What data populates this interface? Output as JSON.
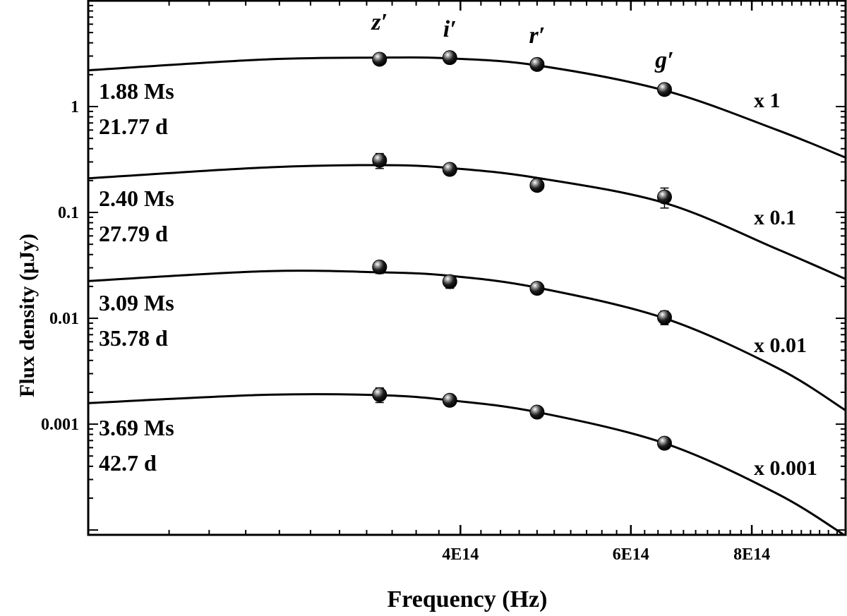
{
  "chart_data": {
    "type": "scatter",
    "title": "",
    "xlabel": "Frequency (Hz)",
    "ylabel": "Flux density (μJy)",
    "xscale": "log",
    "yscale": "log",
    "xlim": [
      165000000000000.0,
      1000000000000000.0
    ],
    "ylim": [
      9e-05,
      10
    ],
    "x_ticks": [
      {
        "value": 400000000000000.0,
        "label": "4E14"
      },
      {
        "value": 600000000000000.0,
        "label": "6E14"
      },
      {
        "value": 800000000000000.0,
        "label": "8E14"
      }
    ],
    "y_ticks": [
      {
        "value": 0.001,
        "label": "0.001"
      },
      {
        "value": 0.01,
        "label": "0.01"
      },
      {
        "value": 0.1,
        "label": "0.1"
      },
      {
        "value": 1,
        "label": "1"
      }
    ],
    "filters": [
      {
        "name": "z′",
        "freq": 330000000000000.0
      },
      {
        "name": "i′",
        "freq": 390000000000000.0
      },
      {
        "name": "r′",
        "freq": 480000000000000.0
      },
      {
        "name": "g′",
        "freq": 650000000000000.0
      }
    ],
    "series": [
      {
        "name": "1.88 Ms",
        "time_s": "1.88 Ms",
        "time_d": "21.77 d",
        "scale": "x 1",
        "x": [
          330000000000000.0,
          390000000000000.0,
          480000000000000.0,
          650000000000000.0
        ],
        "y": [
          2.8,
          2.9,
          2.5,
          1.45
        ],
        "err": [
          0.3,
          0.2,
          0.2,
          0.12
        ]
      },
      {
        "name": "2.40 Ms",
        "time_s": "2.40 Ms",
        "time_d": "27.79 d",
        "scale": "x 0.1",
        "x": [
          330000000000000.0,
          390000000000000.0,
          480000000000000.0,
          650000000000000.0
        ],
        "y": [
          0.31,
          0.255,
          0.18,
          0.14
        ],
        "err": [
          0.05,
          0.03,
          0.015,
          0.03
        ]
      },
      {
        "name": "3.09 Ms",
        "time_s": "3.09 Ms",
        "time_d": "35.78 d",
        "scale": "x 0.01",
        "x": [
          330000000000000.0,
          390000000000000.0,
          480000000000000.0,
          650000000000000.0
        ],
        "y": [
          0.0305,
          0.0222,
          0.0192,
          0.0102
        ],
        "err": [
          0.004,
          0.003,
          0.001,
          0.0015
        ]
      },
      {
        "name": "3.69 Ms",
        "time_s": "3.69 Ms",
        "time_d": "42.7 d",
        "scale": "x 0.001",
        "x": [
          330000000000000.0,
          390000000000000.0,
          480000000000000.0,
          650000000000000.0
        ],
        "y": [
          0.0019,
          0.00168,
          0.0013,
          0.00066
        ],
        "err": [
          0.0003,
          0.0001,
          0.0001,
          5e-05
        ]
      }
    ],
    "fit_curves": [
      {
        "x": [
          165000000000000.0,
          250000000000000.0,
          330000000000000.0,
          390000000000000.0,
          480000000000000.0,
          650000000000000.0,
          850000000000000.0,
          1000000000000000.0
        ],
        "y": [
          2.2,
          2.78,
          2.9,
          2.85,
          2.45,
          1.42,
          0.6,
          0.33
        ]
      },
      {
        "x": [
          165000000000000.0,
          250000000000000.0,
          330000000000000.0,
          390000000000000.0,
          480000000000000.0,
          650000000000000.0,
          850000000000000.0,
          1000000000000000.0
        ],
        "y": [
          0.21,
          0.265,
          0.28,
          0.263,
          0.212,
          0.123,
          0.045,
          0.0235
        ]
      },
      {
        "x": [
          165000000000000.0,
          250000000000000.0,
          330000000000000.0,
          390000000000000.0,
          480000000000000.0,
          650000000000000.0,
          850000000000000.0,
          1000000000000000.0
        ],
        "y": [
          0.0225,
          0.0278,
          0.0272,
          0.0252,
          0.0195,
          0.01,
          0.0034,
          0.00135
        ]
      },
      {
        "x": [
          165000000000000.0,
          250000000000000.0,
          330000000000000.0,
          390000000000000.0,
          480000000000000.0,
          650000000000000.0,
          850000000000000.0,
          1000000000000000.0
        ],
        "y": [
          0.00158,
          0.00189,
          0.00188,
          0.00168,
          0.0013,
          0.00066,
          0.00022,
          8.8e-05
        ]
      }
    ]
  }
}
